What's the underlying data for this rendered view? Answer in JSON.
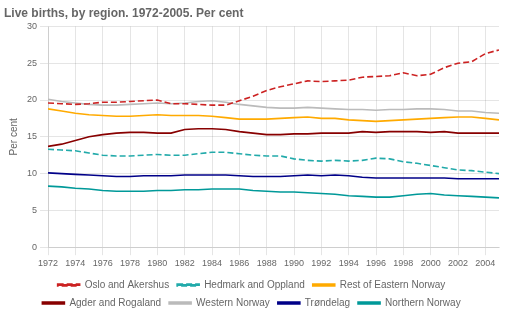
{
  "chart_data": {
    "type": "line",
    "title": "Live births, by region. 1972-2005. Per cent",
    "y_label": "Per cent",
    "x": [
      1972,
      1973,
      1974,
      1975,
      1976,
      1977,
      1978,
      1979,
      1980,
      1981,
      1982,
      1983,
      1984,
      1985,
      1986,
      1987,
      1988,
      1989,
      1990,
      1991,
      1992,
      1993,
      1994,
      1995,
      1996,
      1997,
      1998,
      1999,
      2000,
      2001,
      2002,
      2003,
      2004,
      2005
    ],
    "series": [
      {
        "name": "Oslo and Akershus",
        "color": "#cc2222",
        "line_style": "dashed",
        "values": [
          19.6,
          19.5,
          19.4,
          19.5,
          19.7,
          19.7,
          19.8,
          19.9,
          20.0,
          19.5,
          19.5,
          19.4,
          19.3,
          19.3,
          19.9,
          20.5,
          21.3,
          21.8,
          22.2,
          22.6,
          22.5,
          22.6,
          22.7,
          23.1,
          23.2,
          23.3,
          23.7,
          23.3,
          23.5,
          24.4,
          25.0,
          25.2,
          26.3,
          26.8
        ]
      },
      {
        "name": "Hedmark and Oppland",
        "color": "#22aaaa",
        "line_style": "dashed",
        "values": [
          13.3,
          13.2,
          13.1,
          12.8,
          12.5,
          12.4,
          12.4,
          12.5,
          12.6,
          12.5,
          12.5,
          12.7,
          12.9,
          12.9,
          12.7,
          12.5,
          12.4,
          12.4,
          12.0,
          11.8,
          11.7,
          11.8,
          11.7,
          11.8,
          12.1,
          12.0,
          11.6,
          11.4,
          11.1,
          10.8,
          10.5,
          10.4,
          10.2,
          10.0
        ]
      },
      {
        "name": "Rest of Eastern Norway",
        "color": "#ffaa00",
        "line_style": "solid",
        "values": [
          18.8,
          18.5,
          18.2,
          18.0,
          17.9,
          17.8,
          17.8,
          17.9,
          18.0,
          17.9,
          17.9,
          17.9,
          17.8,
          17.6,
          17.4,
          17.4,
          17.4,
          17.5,
          17.6,
          17.7,
          17.5,
          17.5,
          17.3,
          17.2,
          17.1,
          17.2,
          17.3,
          17.4,
          17.5,
          17.6,
          17.7,
          17.7,
          17.5,
          17.3
        ]
      },
      {
        "name": "Agder and Rogaland",
        "color": "#880000",
        "line_style": "solid",
        "values": [
          13.7,
          14.0,
          14.5,
          15.0,
          15.3,
          15.5,
          15.6,
          15.6,
          15.5,
          15.5,
          16.0,
          16.1,
          16.1,
          16.0,
          15.7,
          15.5,
          15.3,
          15.3,
          15.4,
          15.4,
          15.5,
          15.5,
          15.5,
          15.7,
          15.6,
          15.7,
          15.7,
          15.7,
          15.6,
          15.7,
          15.5,
          15.5,
          15.5,
          15.5
        ]
      },
      {
        "name": "Western Norway",
        "color": "#bbbbbb",
        "line_style": "solid",
        "values": [
          20.1,
          19.8,
          19.6,
          19.4,
          19.3,
          19.3,
          19.4,
          19.5,
          19.6,
          19.5,
          19.6,
          19.8,
          19.9,
          19.7,
          19.4,
          19.2,
          19.0,
          18.9,
          18.9,
          19.0,
          18.9,
          18.8,
          18.7,
          18.7,
          18.6,
          18.7,
          18.7,
          18.8,
          18.8,
          18.7,
          18.5,
          18.5,
          18.3,
          18.2
        ]
      },
      {
        "name": "Trøndelag",
        "color": "#000088",
        "line_style": "solid",
        "values": [
          10.1,
          10.0,
          9.9,
          9.8,
          9.7,
          9.6,
          9.6,
          9.7,
          9.7,
          9.7,
          9.8,
          9.8,
          9.8,
          9.8,
          9.7,
          9.6,
          9.6,
          9.6,
          9.7,
          9.8,
          9.7,
          9.8,
          9.7,
          9.5,
          9.4,
          9.4,
          9.4,
          9.4,
          9.4,
          9.4,
          9.3,
          9.3,
          9.3,
          9.3
        ]
      },
      {
        "name": "Northern Norway",
        "color": "#009999",
        "line_style": "solid",
        "values": [
          8.3,
          8.2,
          8.0,
          7.9,
          7.7,
          7.6,
          7.6,
          7.6,
          7.7,
          7.7,
          7.8,
          7.8,
          7.9,
          7.9,
          7.9,
          7.7,
          7.6,
          7.5,
          7.5,
          7.4,
          7.3,
          7.2,
          7.0,
          6.9,
          6.8,
          6.8,
          7.0,
          7.2,
          7.3,
          7.1,
          7.0,
          6.9,
          6.8,
          6.7
        ]
      }
    ],
    "xlim": [
      1972,
      2005
    ],
    "xticks": [
      1972,
      1974,
      1976,
      1978,
      1980,
      1982,
      1984,
      1986,
      1988,
      1990,
      1992,
      1994,
      1996,
      1998,
      2000,
      2002,
      2004
    ],
    "ylim": [
      0,
      30
    ],
    "yticks": [
      0,
      5,
      10,
      15,
      20,
      25,
      30
    ],
    "grid": true,
    "legend": "bottom"
  }
}
